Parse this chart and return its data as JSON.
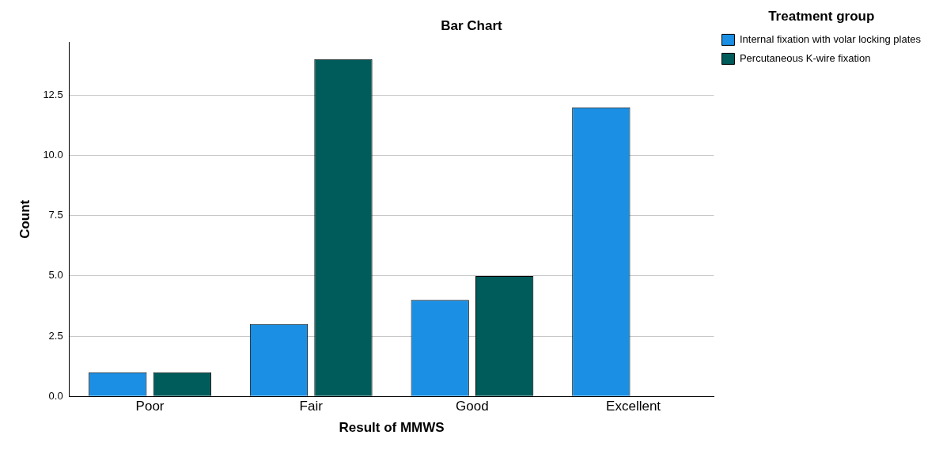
{
  "chart_data": {
    "type": "bar",
    "title": "Bar Chart",
    "xlabel": "Result of MMWS",
    "ylabel": "Count",
    "legend_title": "Treatment group",
    "categories": [
      "Poor",
      "Fair",
      "Good",
      "Excellent"
    ],
    "series": [
      {
        "name": "Internal fixation with volar locking plates",
        "color": "#1a8fe3",
        "values": [
          1,
          3,
          4,
          12
        ]
      },
      {
        "name": "Percutaneous K-wire fixation",
        "color": "#005c5a",
        "values": [
          1,
          14,
          5,
          0
        ]
      }
    ],
    "ylim": [
      0,
      14.7
    ],
    "yticks": [
      {
        "value": 0,
        "label": "0.0"
      },
      {
        "value": 2.5,
        "label": "2.5"
      },
      {
        "value": 5,
        "label": "5.0"
      },
      {
        "value": 7.5,
        "label": "7.5"
      },
      {
        "value": 10,
        "label": "10.0"
      },
      {
        "value": 12.5,
        "label": "12.5"
      }
    ],
    "grid": "y",
    "legend": "top right"
  }
}
